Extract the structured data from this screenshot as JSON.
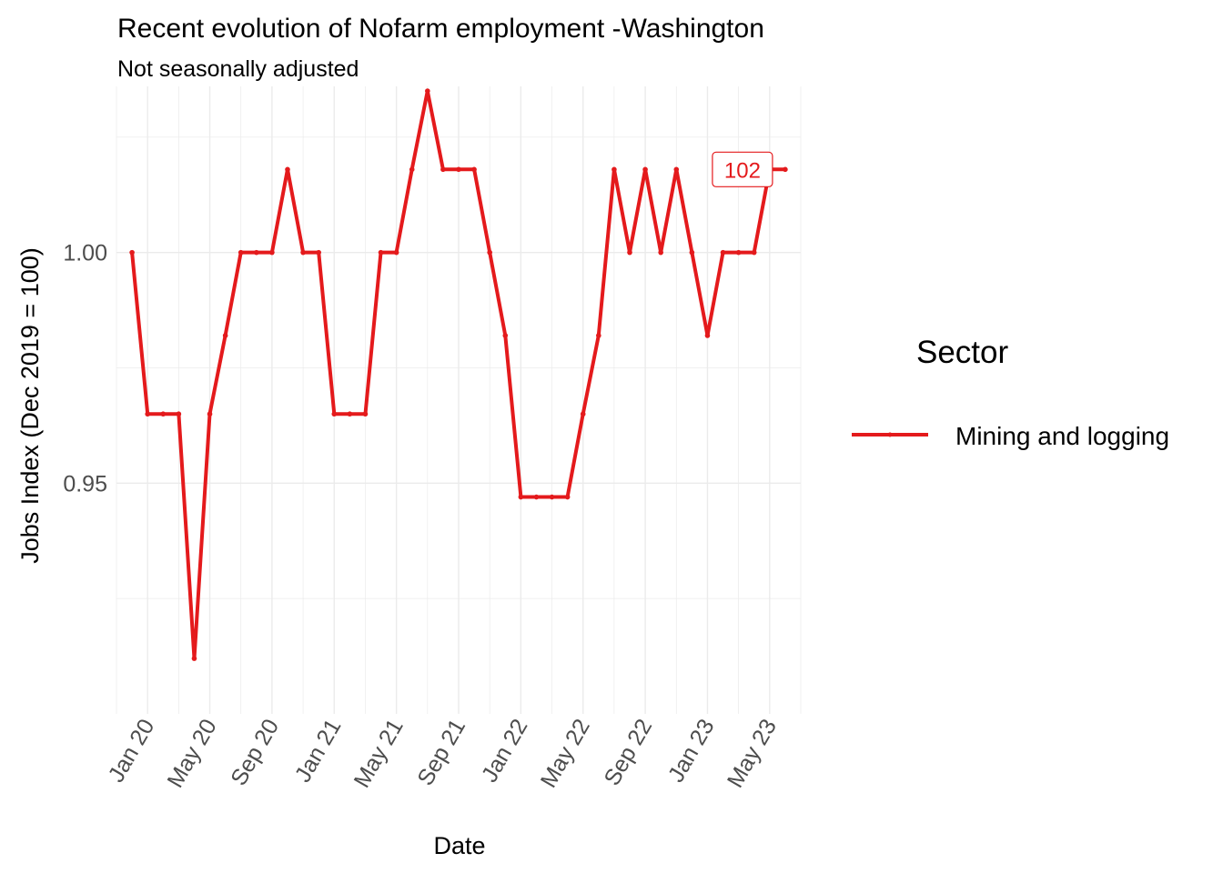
{
  "chart_data": {
    "type": "line",
    "title": "Recent evolution of Nofarm employment -Washington",
    "subtitle": "Not seasonally adjusted",
    "xlabel": "Date",
    "ylabel": "Jobs Index (Dec 2019 = 100)",
    "x_ticks": [
      "Jan 20",
      "May 20",
      "Sep 20",
      "Jan 21",
      "May 21",
      "Sep 21",
      "Jan 22",
      "May 22",
      "Sep 22",
      "Jan 23",
      "May 23"
    ],
    "y_ticks": [
      "0.95",
      "1.00"
    ],
    "ylim": [
      0.9,
      1.036
    ],
    "xlim": [
      "2019-11",
      "2023-07"
    ],
    "grid": true,
    "legend": {
      "title": "Sector",
      "position": "right"
    },
    "end_label": "102",
    "colors": {
      "series": "#e41a1c",
      "grid": "#ebebeb"
    },
    "x": [
      "2019-12",
      "2020-01",
      "2020-02",
      "2020-03",
      "2020-04",
      "2020-05",
      "2020-06",
      "2020-07",
      "2020-08",
      "2020-09",
      "2020-10",
      "2020-11",
      "2020-12",
      "2021-01",
      "2021-02",
      "2021-03",
      "2021-04",
      "2021-05",
      "2021-06",
      "2021-07",
      "2021-08",
      "2021-09",
      "2021-10",
      "2021-11",
      "2021-12",
      "2022-01",
      "2022-02",
      "2022-03",
      "2022-04",
      "2022-05",
      "2022-06",
      "2022-07",
      "2022-08",
      "2022-09",
      "2022-10",
      "2022-11",
      "2022-12",
      "2023-01",
      "2023-02",
      "2023-03",
      "2023-04",
      "2023-05",
      "2023-06"
    ],
    "series": [
      {
        "name": "Mining and logging",
        "values": [
          1.0,
          0.965,
          0.965,
          0.965,
          0.912,
          0.965,
          0.982,
          1.0,
          1.0,
          1.0,
          1.018,
          1.0,
          1.0,
          0.965,
          0.965,
          0.965,
          1.0,
          1.0,
          1.018,
          1.035,
          1.018,
          1.018,
          1.018,
          1.0,
          0.982,
          0.947,
          0.947,
          0.947,
          0.947,
          0.965,
          0.982,
          1.018,
          1.0,
          1.018,
          1.0,
          1.018,
          1.0,
          0.982,
          1.0,
          1.0,
          1.0,
          1.018,
          1.018
        ]
      }
    ]
  }
}
